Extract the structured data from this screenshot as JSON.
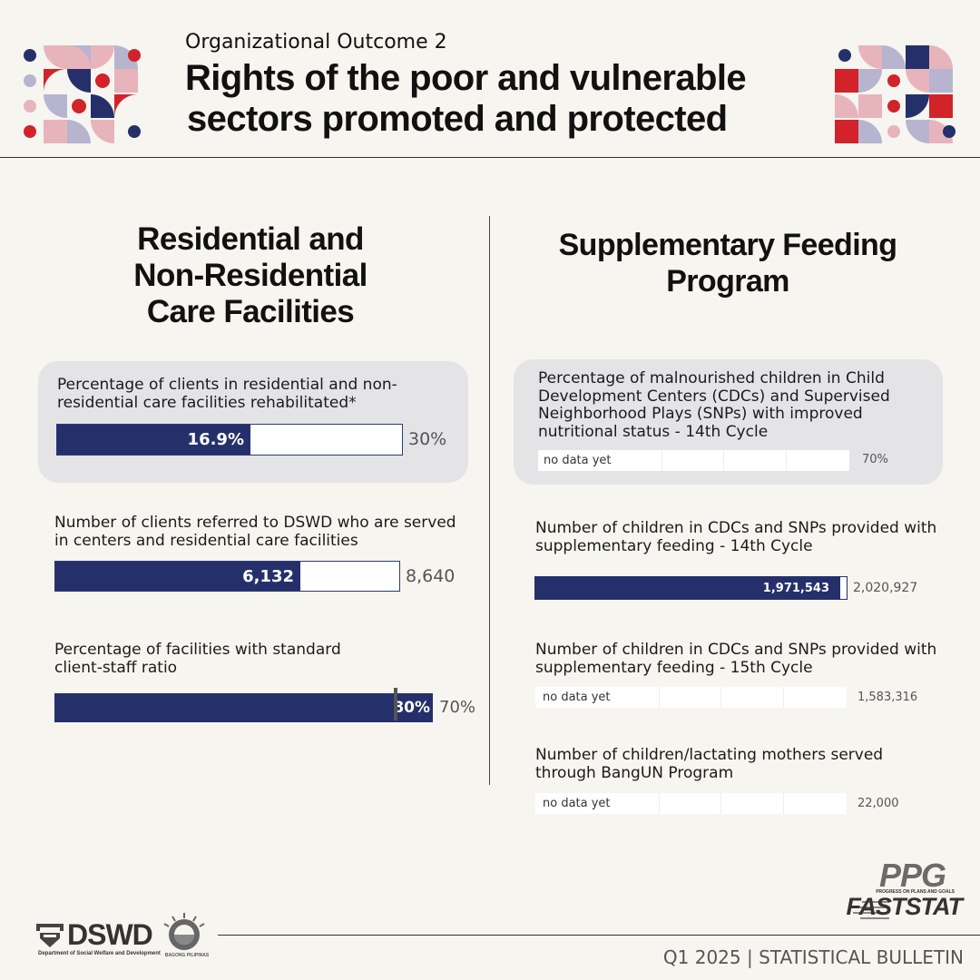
{
  "header": {
    "outcome": "Organizational Outcome 2",
    "title_line1": "Rights of the poor and vulnerable",
    "title_line2": "sectors promoted and protected"
  },
  "left_section": {
    "title_line1": "Residential and",
    "title_line2": "Non-Residential",
    "title_line3": "Care Facilities",
    "metrics": [
      {
        "label_line1": "Percentage of clients in residential and non-",
        "label_line2": "residential care facilities rehabilitated*",
        "actual": "16.9%",
        "target": "30%",
        "progress_fraction": 0.563
      },
      {
        "label_line1": "Number of clients referred to DSWD who are served",
        "label_line2": "in centers and residential care facilities",
        "actual": "6,132",
        "target": "8,640",
        "progress_fraction": 0.71
      },
      {
        "label_line1": "Percentage of facilities with standard",
        "label_line2": "client-staff ratio",
        "actual": "80%",
        "target": "70%",
        "progress_fraction": 1.0
      }
    ]
  },
  "right_section": {
    "title_line1": "Supplementary Feeding",
    "title_line2": "Program",
    "metrics": [
      {
        "label_line1": "Percentage of malnourished children in Child",
        "label_line2": "Development Centers (CDCs) and Supervised",
        "label_line3": "Neighborhood Plays (SNPs) with improved",
        "label_line4": "nutritional status - 14th Cycle",
        "actual": "no data yet",
        "target": "70%"
      },
      {
        "label_line1": "Number of children in CDCs and SNPs provided with",
        "label_line2": "supplementary feeding - 14th Cycle",
        "actual": "1,971,543",
        "target": "2,020,927",
        "progress_fraction": 0.975
      },
      {
        "label_line1": "Number of children in CDCs and SNPs provided with",
        "label_line2": "supplementary feeding - 15th Cycle",
        "actual": "no data yet",
        "target": "1,583,316"
      },
      {
        "label_line1": "Number of children/lactating mothers served",
        "label_line2": "through BangUN Program",
        "actual": "no data yet",
        "target": "22,000"
      }
    ]
  },
  "footer": {
    "bulletin": "Q1 2025 | STATISTICAL BULLETIN",
    "dswd_wordmark": "DSWD",
    "dswd_subtitle": "Department of Social Welfare and Development",
    "bagong_pilipinas": "BAGONG PILIPINAS",
    "ppg_mark": "PPG",
    "ppg_subtitle": "PROGRESS ON PLANS AND GOALS",
    "faststat": "FASTSTAT"
  },
  "colors": {
    "navy": "#25306b",
    "red": "#d2232a",
    "pink": "#e8b4bc",
    "lavender": "#b7b4cf",
    "card": "#e4e4e7",
    "background": "#f6f5f0"
  },
  "icons": [
    "geometric-pattern-left",
    "geometric-pattern-right",
    "dswd-logo-icon",
    "bagong-pilipinas-seal-icon",
    "ppg-faststat-logo"
  ]
}
